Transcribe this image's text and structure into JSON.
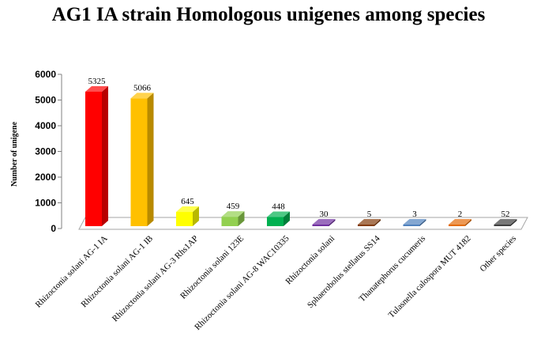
{
  "chart_data": {
    "type": "bar",
    "title": "AG1 IA strain Homologous unigenes among species",
    "xlabel": "",
    "ylabel": "Number of unigene",
    "ylim": [
      0,
      6000
    ],
    "yticks": [
      0,
      1000,
      2000,
      3000,
      4000,
      5000,
      6000
    ],
    "grid": false,
    "legend": "none",
    "style": "3d-column",
    "categories": [
      "Rhizoctonia solani AG-1 IA",
      "Rhizoctonia solani AG-1 IB",
      "Rhizoctonia solani AG-3 Rhs1AP",
      "Rhizoctonia solani 123E",
      "Rhizoctonia solani AG-8 WAC10335",
      "Rhizoctonia solani",
      "Sphaerobolus stellatus SS14",
      "Thanatephorus cucumeris",
      "Tulasnella calospora MUT 4182",
      "Other species"
    ],
    "values": [
      5325,
      5066,
      645,
      459,
      448,
      30,
      5,
      3,
      2,
      52
    ],
    "colors": [
      "#ff0000",
      "#ffc000",
      "#ffff00",
      "#92d050",
      "#00b050",
      "#7030a0",
      "#843c0c",
      "#4f81bd",
      "#e46c0a",
      "#404040"
    ]
  }
}
